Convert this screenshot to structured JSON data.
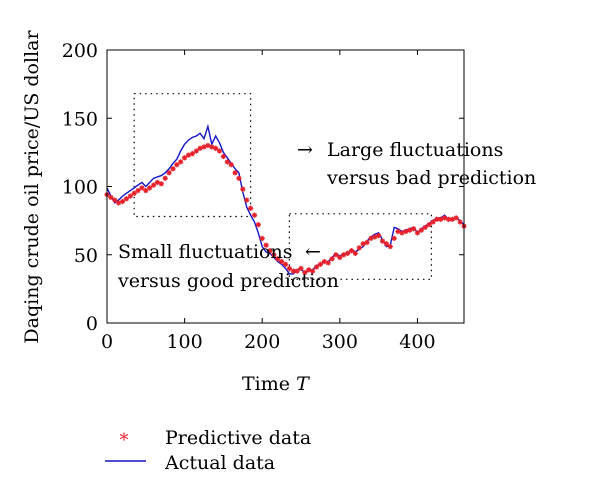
{
  "chart_data": {
    "type": "line",
    "title": "",
    "xlabel": "Time",
    "xlabel_var": "T",
    "ylabel": "Daqing crude oil price/US dollar",
    "xlim": [
      0,
      460
    ],
    "ylim": [
      0,
      200
    ],
    "xticks": [
      0,
      100,
      200,
      300,
      400
    ],
    "yticks": [
      0,
      50,
      100,
      150,
      200
    ],
    "grid": false,
    "legend_position": "bottom-left",
    "series": [
      {
        "name": "Predictive data",
        "style": "red asterisk markers",
        "color": "#e8202a",
        "x": [
          0,
          5,
          10,
          15,
          20,
          25,
          30,
          35,
          40,
          45,
          50,
          55,
          60,
          65,
          70,
          75,
          80,
          85,
          90,
          95,
          100,
          105,
          110,
          115,
          120,
          125,
          130,
          135,
          140,
          145,
          150,
          155,
          160,
          165,
          170,
          175,
          180,
          185,
          190,
          195,
          200,
          205,
          210,
          215,
          220,
          225,
          230,
          235,
          240,
          245,
          250,
          255,
          260,
          265,
          270,
          275,
          280,
          285,
          290,
          295,
          300,
          305,
          310,
          315,
          320,
          325,
          330,
          335,
          340,
          345,
          350,
          355,
          360,
          365,
          370,
          375,
          380,
          385,
          390,
          395,
          400,
          405,
          410,
          415,
          420,
          425,
          430,
          435,
          440,
          445,
          450,
          455,
          460
        ],
        "values": [
          94,
          92,
          90,
          88,
          89,
          91,
          93,
          95,
          97,
          99,
          97,
          99,
          101,
          103,
          102,
          106,
          110,
          113,
          116,
          118,
          121,
          123,
          124,
          126,
          128,
          129,
          130,
          129,
          128,
          126,
          122,
          118,
          116,
          110,
          106,
          98,
          90,
          84,
          79,
          72,
          62,
          57,
          53,
          50,
          47,
          45,
          43,
          40,
          38,
          38,
          40,
          37,
          39,
          38,
          41,
          43,
          45,
          44,
          47,
          50,
          48,
          50,
          51,
          53,
          51,
          55,
          58,
          59,
          62,
          63,
          64,
          60,
          58,
          56,
          62,
          67,
          66,
          67,
          68,
          69,
          66,
          68,
          70,
          72,
          74,
          76,
          76,
          77,
          76,
          76,
          77,
          74,
          71
        ]
      },
      {
        "name": "Actual data",
        "style": "blue line",
        "color": "#1414c8",
        "x": [
          0,
          5,
          10,
          15,
          20,
          25,
          30,
          35,
          40,
          45,
          50,
          55,
          60,
          65,
          70,
          75,
          80,
          85,
          90,
          95,
          100,
          105,
          110,
          115,
          120,
          125,
          130,
          135,
          140,
          145,
          150,
          155,
          160,
          165,
          170,
          175,
          180,
          185,
          190,
          195,
          200,
          205,
          210,
          215,
          220,
          225,
          230,
          235,
          240,
          245,
          250,
          255,
          260,
          265,
          270,
          275,
          280,
          285,
          290,
          295,
          300,
          305,
          310,
          315,
          320,
          325,
          330,
          335,
          340,
          345,
          350,
          355,
          360,
          365,
          370,
          375,
          380,
          385,
          390,
          395,
          400,
          405,
          410,
          415,
          420,
          425,
          430,
          435,
          440,
          445,
          450,
          455,
          460
        ],
        "values": [
          99,
          93,
          88,
          90,
          93,
          95,
          97,
          99,
          101,
          103,
          100,
          103,
          106,
          107,
          108,
          110,
          113,
          117,
          120,
          126,
          131,
          134,
          136,
          137,
          139,
          135,
          144,
          131,
          137,
          132,
          125,
          121,
          117,
          113,
          110,
          96,
          85,
          79,
          74,
          66,
          56,
          52,
          51,
          48,
          45,
          43,
          40,
          36,
          36,
          39,
          40,
          36,
          39,
          39,
          42,
          43,
          45,
          45,
          48,
          51,
          49,
          51,
          51,
          54,
          52,
          54,
          56,
          60,
          63,
          65,
          66,
          61,
          56,
          57,
          70,
          69,
          67,
          68,
          69,
          70,
          66,
          69,
          71,
          73,
          75,
          77,
          77,
          79,
          76,
          76,
          77,
          75,
          72
        ]
      }
    ],
    "annotations": [
      {
        "lines": [
          "Large fluctuations",
          "versus bad prediction"
        ],
        "arrow": "→"
      },
      {
        "lines": [
          "Small fluctuations",
          "versus good prediction"
        ],
        "arrow": "←"
      }
    ],
    "highlight_boxes": [
      {
        "x_range": [
          35,
          185
        ],
        "y_range": [
          78,
          168
        ]
      },
      {
        "x_range": [
          235,
          418
        ],
        "y_range": [
          32,
          80
        ]
      }
    ]
  }
}
